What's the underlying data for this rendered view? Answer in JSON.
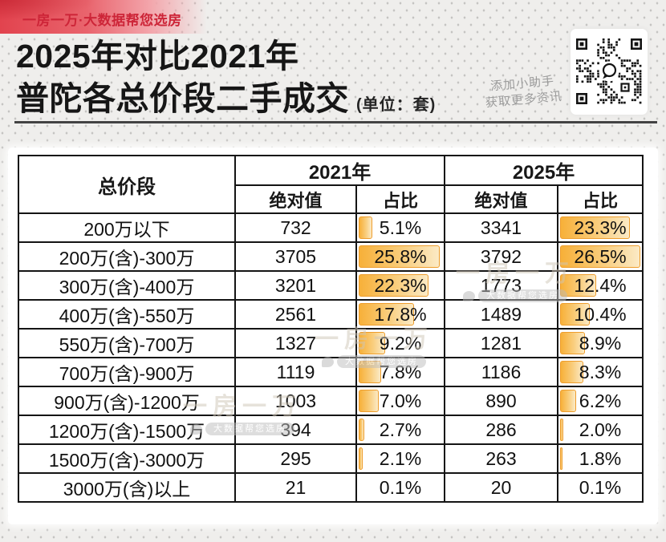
{
  "banner": {
    "brand_text": "一房一万·大数据帮您选房"
  },
  "header": {
    "title_line1": "2025年对比2021年",
    "title_line2": "普陀各总价段二手成交",
    "unit_note": "(单位：套)",
    "assistant_line1": "添加小助手",
    "assistant_line2": "获取更多资讯"
  },
  "watermark": {
    "brand": "一房一万",
    "tagline": "大数据帮您选房"
  },
  "chart_data": {
    "type": "table",
    "title": "2025年对比2021年普陀各总价段二手成交",
    "unit": "套",
    "row_header_label": "总价段",
    "column_groups": [
      {
        "label": "2021年",
        "sub": [
          "绝对值",
          "占比"
        ]
      },
      {
        "label": "2025年",
        "sub": [
          "绝对值",
          "占比"
        ]
      }
    ],
    "bar_style": {
      "fill_from": "#F7B039",
      "fill_to": "#FBEAC6",
      "border": "#EE9D2C",
      "max_pct": 26.5
    },
    "rows": [
      {
        "label": "200万以下",
        "abs_2021": "732",
        "pct_2021": 5.1,
        "abs_2025": "3341",
        "pct_2025": 23.3
      },
      {
        "label": "200万(含)-300万",
        "abs_2021": "3705",
        "pct_2021": 25.8,
        "abs_2025": "3792",
        "pct_2025": 26.5
      },
      {
        "label": "300万(含)-400万",
        "abs_2021": "3201",
        "pct_2021": 22.3,
        "abs_2025": "1773",
        "pct_2025": 12.4
      },
      {
        "label": "400万(含)-550万",
        "abs_2021": "2561",
        "pct_2021": 17.8,
        "abs_2025": "1489",
        "pct_2025": 10.4
      },
      {
        "label": "550万(含)-700万",
        "abs_2021": "1327",
        "pct_2021": 9.2,
        "abs_2025": "1281",
        "pct_2025": 8.9
      },
      {
        "label": "700万(含)-900万",
        "abs_2021": "1119",
        "pct_2021": 7.8,
        "abs_2025": "1186",
        "pct_2025": 8.3
      },
      {
        "label": "900万(含)-1200万",
        "abs_2021": "1003",
        "pct_2021": 7.0,
        "abs_2025": "890",
        "pct_2025": 6.2
      },
      {
        "label": "1200万(含)-1500万",
        "abs_2021": "394",
        "pct_2021": 2.7,
        "abs_2025": "286",
        "pct_2025": 2.0
      },
      {
        "label": "1500万(含)-3000万",
        "abs_2021": "295",
        "pct_2021": 2.1,
        "abs_2025": "263",
        "pct_2025": 1.8
      },
      {
        "label": "3000万(含)以上",
        "abs_2021": "21",
        "pct_2021": 0.1,
        "abs_2025": "20",
        "pct_2025": 0.1
      }
    ]
  }
}
